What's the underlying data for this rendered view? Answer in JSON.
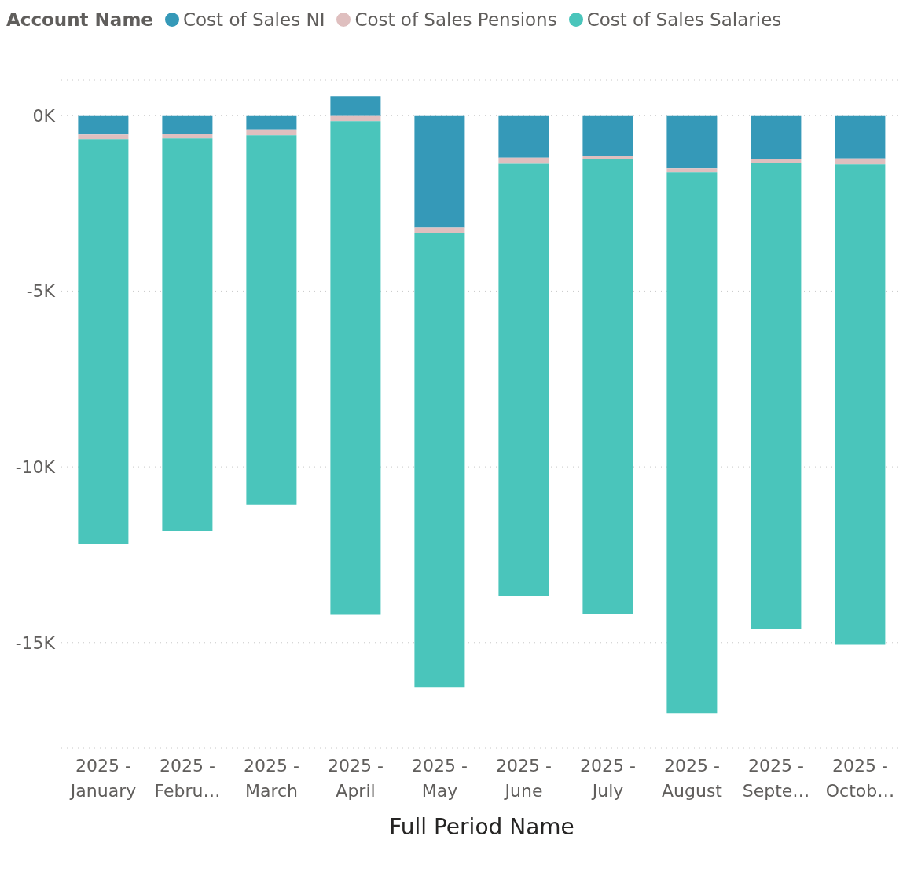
{
  "chart_data": {
    "type": "bar",
    "stacked": true,
    "legend_title": "Account Name",
    "xlabel": "Full Period Name",
    "categories": [
      "2025 - January",
      "2025 - Febru…",
      "2025 - March",
      "2025 - April",
      "2025 - May",
      "2025 - June",
      "2025 - July",
      "2025 - August",
      "2025 - Septe…",
      "2025 - Octob…"
    ],
    "series": [
      {
        "name": "Cost of Sales NI",
        "color": "#3599b8",
        "values": [
          -550,
          -530,
          -400,
          550,
          -3190,
          -1210,
          -1150,
          -1510,
          -1260,
          -1230
        ]
      },
      {
        "name": "Cost of Sales Pensions",
        "color": "#dfbfbf",
        "values": [
          -130,
          -130,
          -170,
          -170,
          -170,
          -170,
          -110,
          -110,
          -100,
          -170
        ]
      },
      {
        "name": "Cost of Sales Salaries",
        "color": "#4ac5bb",
        "values": [
          -11510,
          -11170,
          -10520,
          -14040,
          -12900,
          -12300,
          -12930,
          -15400,
          -13260,
          -13660
        ]
      }
    ],
    "ylim": [
      -18000,
      1000
    ],
    "yticks": [
      {
        "value": 0,
        "label": "0K"
      },
      {
        "value": -5000,
        "label": "-5K"
      },
      {
        "value": -10000,
        "label": "-10K"
      },
      {
        "value": -15000,
        "label": "-15K"
      }
    ],
    "grid": "y",
    "legend": "top left"
  }
}
